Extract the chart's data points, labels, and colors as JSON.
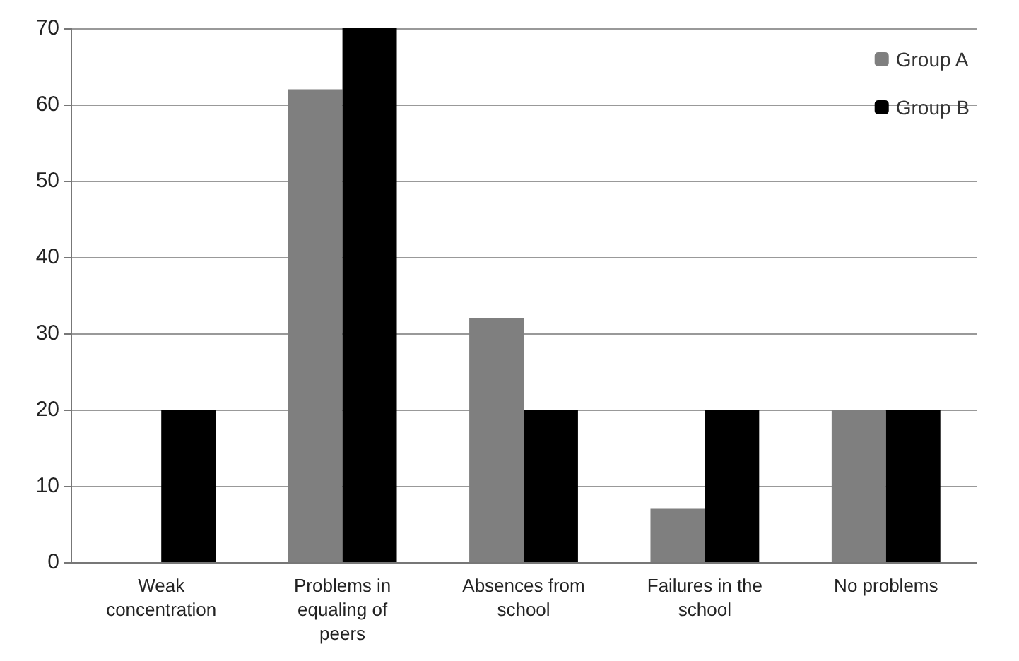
{
  "chart_data": {
    "type": "bar",
    "categories": [
      "Weak\nconcentration",
      "Problems in\nequaling of\npeers",
      "Absences from\nschool",
      "Failures in the\nschool",
      "No problems"
    ],
    "series": [
      {
        "name": "Group A",
        "color": "#7f7f7f",
        "values": [
          0,
          62,
          32,
          7,
          20
        ]
      },
      {
        "name": "Group B",
        "color": "#000000",
        "values": [
          20,
          70,
          20,
          20,
          20
        ]
      }
    ],
    "ylim": [
      0,
      70
    ],
    "yticks": [
      0,
      10,
      20,
      30,
      40,
      50,
      60,
      70
    ],
    "grid": "y",
    "legend": "top right"
  }
}
